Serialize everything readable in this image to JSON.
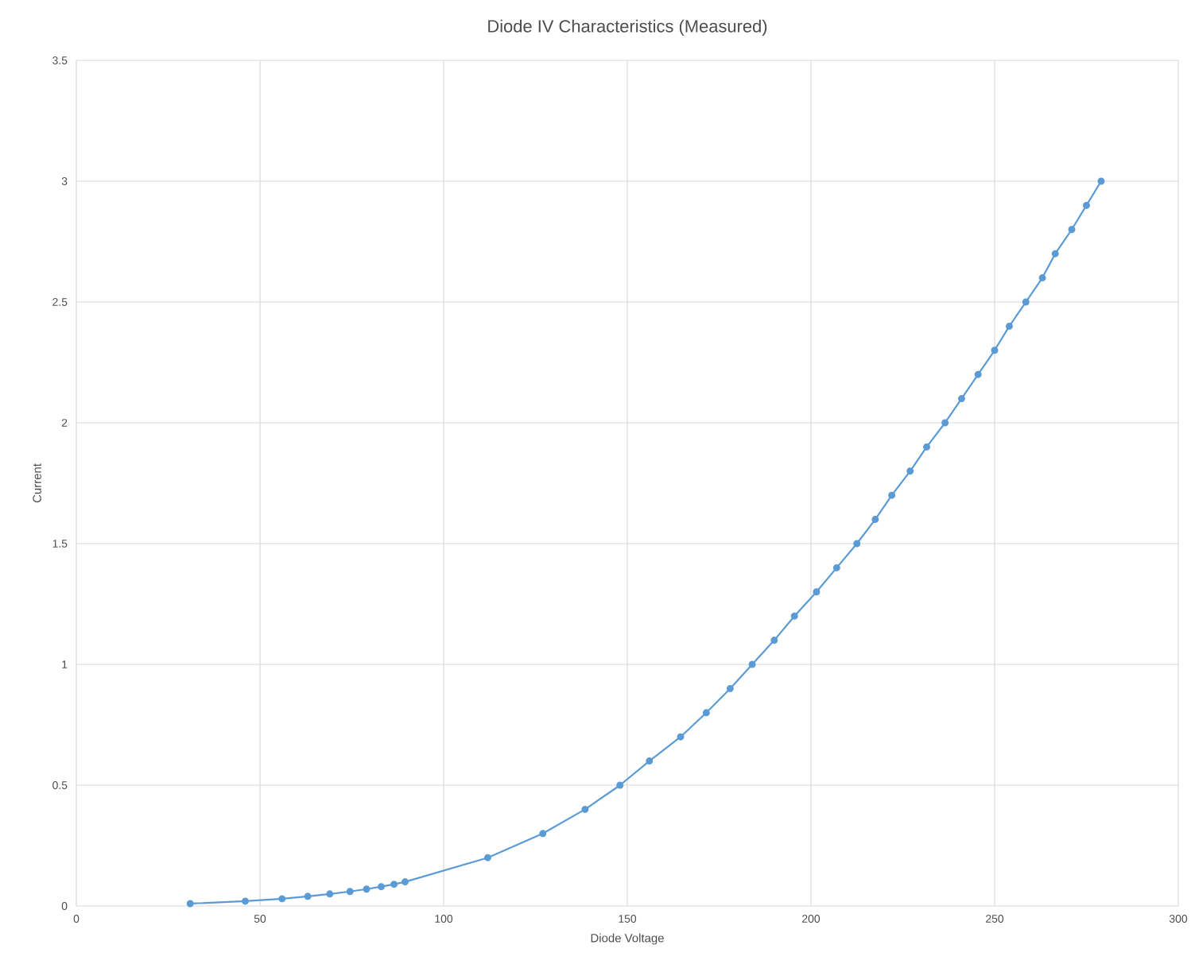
{
  "chart_data": {
    "type": "line",
    "title": "Diode IV Characteristics (Measured)",
    "xlabel": "Diode Voltage",
    "ylabel": "Current",
    "xlim": [
      0,
      300
    ],
    "ylim": [
      0,
      3.5
    ],
    "xticks": [
      0,
      50,
      100,
      150,
      200,
      250,
      300
    ],
    "yticks": [
      0,
      0.5,
      1,
      1.5,
      2,
      2.5,
      3,
      3.5
    ],
    "grid": true,
    "marker": "circle",
    "line_style": "solid",
    "series": [
      {
        "color": "#5b9bd5",
        "x": [
          31,
          46,
          56,
          63,
          69,
          74.5,
          79,
          83,
          86.5,
          89.5,
          112,
          127,
          138.5,
          148,
          156,
          164.5,
          171.5,
          178,
          184,
          190,
          195.5,
          201.5,
          207,
          212.5,
          217.5,
          222,
          227,
          231.5,
          236.5,
          241,
          245.5,
          250,
          254,
          258.5,
          263,
          266.5,
          271,
          275,
          279
        ],
        "values": [
          0.01,
          0.02,
          0.03,
          0.04,
          0.05,
          0.06,
          0.07,
          0.08,
          0.09,
          0.1,
          0.2,
          0.3,
          0.4,
          0.5,
          0.6,
          0.7,
          0.8,
          0.9,
          1.0,
          1.1,
          1.2,
          1.3,
          1.4,
          1.5,
          1.6,
          1.7,
          1.8,
          1.9,
          2.0,
          2.1,
          2.2,
          2.3,
          2.4,
          2.5,
          2.6,
          2.7,
          2.8,
          2.9,
          3.0
        ]
      }
    ]
  }
}
